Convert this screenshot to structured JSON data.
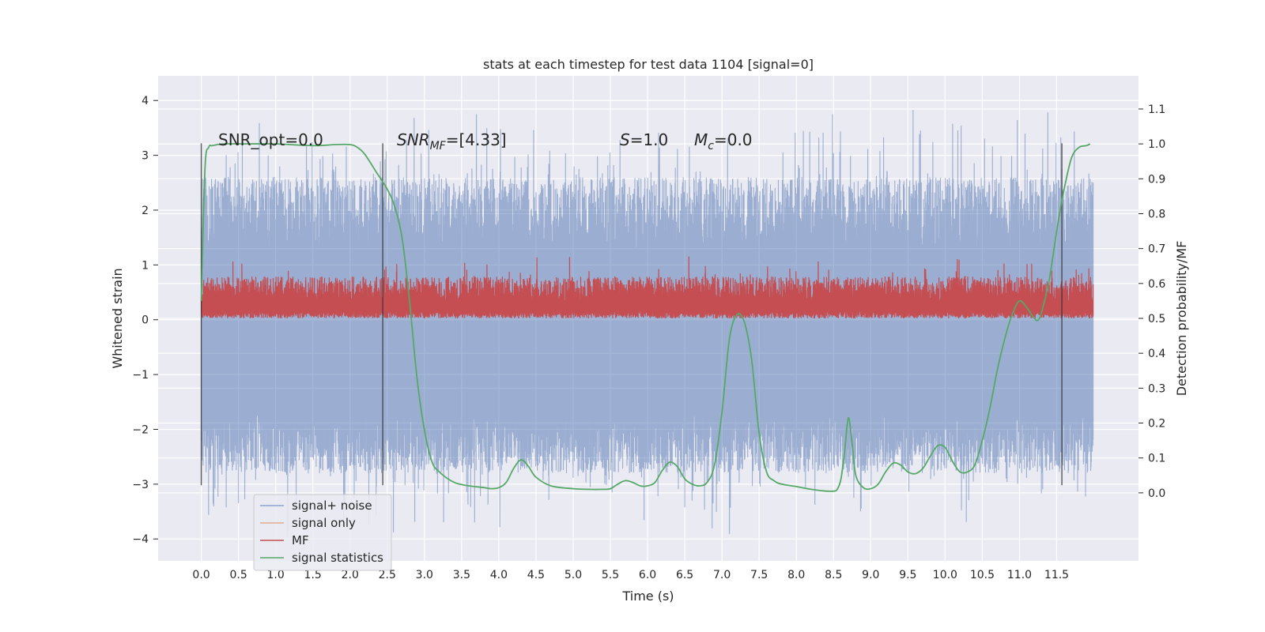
{
  "chart_data": {
    "type": "line",
    "title": "stats at each timestep for test data 1104 [signal=0]",
    "xlabel": "Time (s)",
    "ylabel": "Whitened strain",
    "y2label": "Detection probability/MF",
    "xlim": [
      -0.58,
      12.6
    ],
    "ylim": [
      -4.4,
      4.45
    ],
    "y2lim": [
      -0.195,
      1.195
    ],
    "x_ticks": [
      "0.0",
      "0.5",
      "1.0",
      "1.5",
      "2.0",
      "2.5",
      "3.0",
      "3.5",
      "4.0",
      "4.5",
      "5.0",
      "5.5",
      "6.0",
      "6.5",
      "7.0",
      "7.5",
      "8.0",
      "8.5",
      "9.0",
      "9.5",
      "10.0",
      "10.5",
      "11.0",
      "11.5"
    ],
    "y_ticks": [
      "4",
      "3",
      "2",
      "1",
      "0",
      "−1",
      "−2",
      "−3",
      "−4"
    ],
    "y2_ticks": [
      "1.1",
      "1.0",
      "0.9",
      "0.8",
      "0.7",
      "0.6",
      "0.5",
      "0.4",
      "0.3",
      "0.2",
      "0.1",
      "0.0"
    ],
    "grid": true,
    "legend_position": "lower-left",
    "annotations": {
      "snr_opt": "SNR_opt=0.0",
      "snr_mf_base": "SNR",
      "snr_mf_sub": "MF",
      "snr_mf_val": "=[4.33]",
      "s_base": "S",
      "s_val": "=1.0",
      "mc_base": "M",
      "mc_sub": "c",
      "mc_val": "=0.0"
    },
    "vertical_markers_x": [
      0.0,
      2.44,
      11.57
    ],
    "series": [
      {
        "name": "signal+ noise",
        "color": "#4c72b0",
        "opacity": 0.5,
        "axis": "left",
        "noise_center": -0.35,
        "noise_upper_typical": 2.6,
        "noise_lower_typical": -2.8,
        "x_range": [
          0.0,
          11.99
        ]
      },
      {
        "name": "signal only",
        "color": "#dd8452",
        "opacity": 0.5,
        "axis": "left",
        "values": []
      },
      {
        "name": "MF",
        "color": "#c44e52",
        "axis": "right",
        "baseline": 0.5,
        "band_upper": 0.62,
        "x_range": [
          0.0,
          11.99
        ]
      },
      {
        "name": "signal statistics",
        "color": "#55a868",
        "axis": "right",
        "x": [
          0.0,
          0.05,
          0.1,
          0.15,
          0.3,
          0.6,
          1.0,
          1.5,
          1.8,
          2.0,
          2.1,
          2.2,
          2.35,
          2.5,
          2.6,
          2.7,
          2.8,
          2.9,
          3.0,
          3.1,
          3.2,
          3.4,
          3.6,
          3.8,
          3.9,
          4.0,
          4.1,
          4.2,
          4.3,
          4.4,
          4.5,
          4.7,
          5.0,
          5.2,
          5.4,
          5.5,
          5.6,
          5.7,
          5.8,
          5.9,
          6.0,
          6.1,
          6.2,
          6.3,
          6.4,
          6.5,
          6.6,
          6.7,
          6.8,
          6.9,
          7.0,
          7.1,
          7.2,
          7.3,
          7.4,
          7.5,
          7.6,
          7.7,
          7.8,
          8.0,
          8.2,
          8.4,
          8.5,
          8.55,
          8.6,
          8.65,
          8.7,
          8.75,
          8.8,
          8.9,
          9.0,
          9.1,
          9.2,
          9.3,
          9.4,
          9.5,
          9.6,
          9.7,
          9.8,
          9.9,
          10.0,
          10.1,
          10.2,
          10.3,
          10.4,
          10.5,
          10.6,
          10.7,
          10.8,
          10.9,
          11.0,
          11.1,
          11.2,
          11.25,
          11.3,
          11.4,
          11.5,
          11.6,
          11.7,
          11.8,
          11.9,
          11.95
        ],
        "y": [
          0.55,
          0.93,
          0.99,
          0.995,
          1.0,
          1.0,
          1.0,
          0.995,
          0.998,
          0.998,
          0.99,
          0.97,
          0.92,
          0.87,
          0.82,
          0.73,
          0.55,
          0.33,
          0.18,
          0.09,
          0.06,
          0.03,
          0.02,
          0.015,
          0.012,
          0.015,
          0.03,
          0.07,
          0.095,
          0.075,
          0.045,
          0.02,
          0.012,
          0.01,
          0.01,
          0.012,
          0.025,
          0.035,
          0.03,
          0.02,
          0.02,
          0.03,
          0.065,
          0.088,
          0.075,
          0.04,
          0.025,
          0.02,
          0.03,
          0.08,
          0.23,
          0.44,
          0.51,
          0.49,
          0.38,
          0.17,
          0.06,
          0.035,
          0.025,
          0.018,
          0.01,
          0.005,
          0.005,
          0.01,
          0.04,
          0.12,
          0.215,
          0.14,
          0.05,
          0.015,
          0.012,
          0.025,
          0.06,
          0.085,
          0.08,
          0.06,
          0.055,
          0.07,
          0.105,
          0.135,
          0.13,
          0.09,
          0.06,
          0.06,
          0.08,
          0.15,
          0.24,
          0.35,
          0.44,
          0.51,
          0.55,
          0.53,
          0.5,
          0.495,
          0.52,
          0.61,
          0.75,
          0.87,
          0.96,
          0.99,
          0.995,
          1.0
        ]
      }
    ]
  }
}
